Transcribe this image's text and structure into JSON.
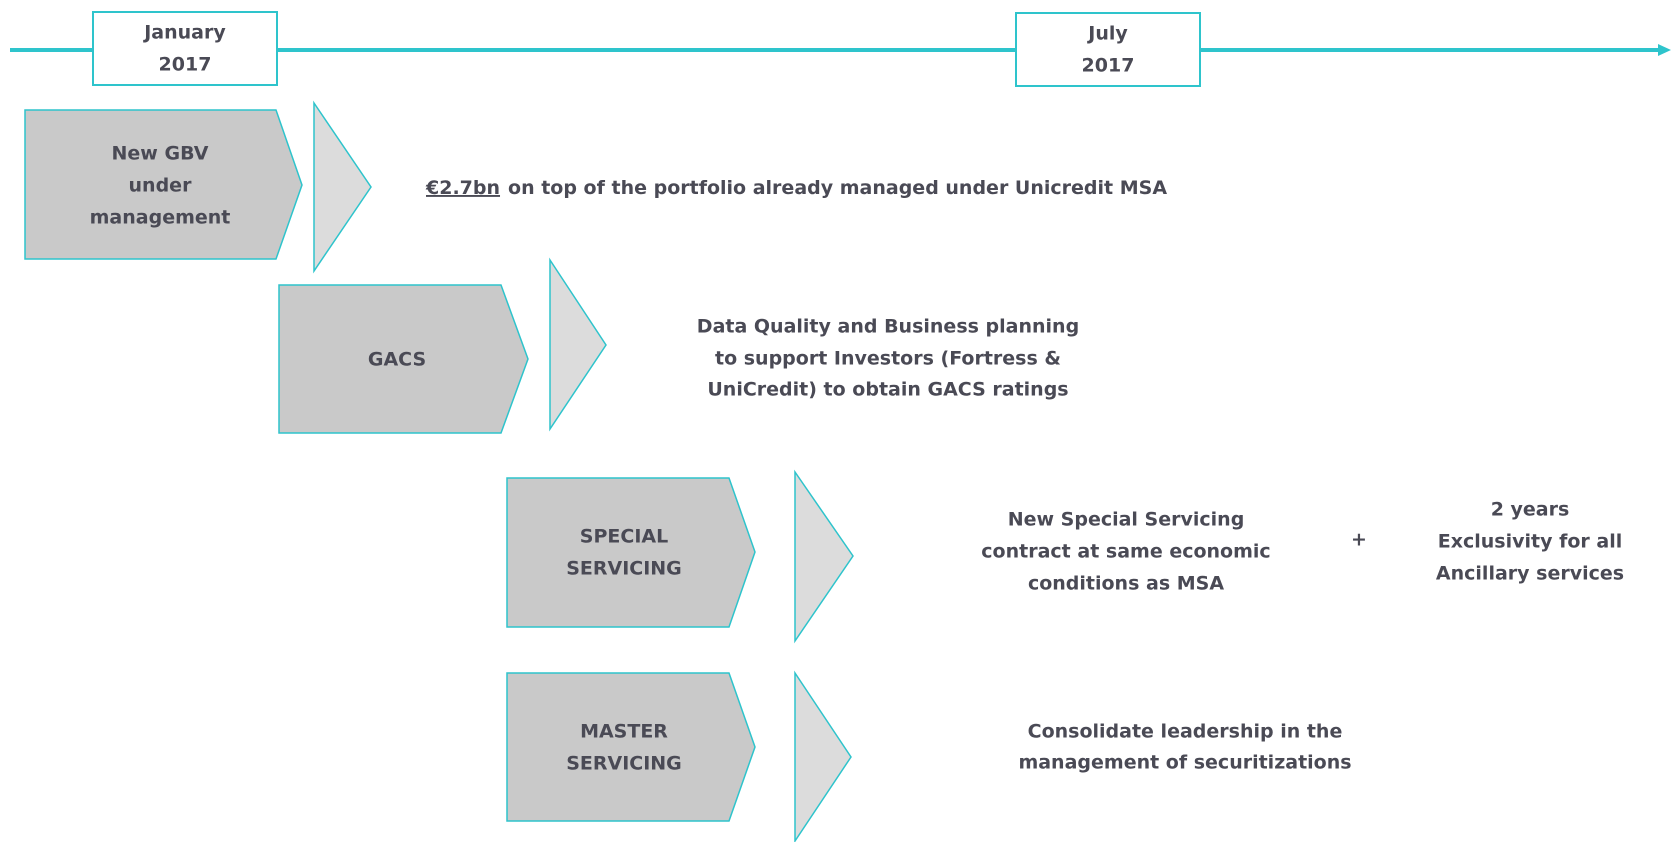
{
  "timeline": {
    "start": [
      "January",
      "2017"
    ],
    "end": [
      "July",
      "2017"
    ]
  },
  "rows": [
    {
      "label": [
        "New GBV",
        "under",
        "management"
      ],
      "highlight": "€2.7bn",
      "description": "on top of the portfolio already managed under Unicredit MSA"
    },
    {
      "label": [
        "GACS"
      ],
      "description": [
        "Data Quality and Business planning",
        "to support Investors (Fortress &",
        "UniCredit) to obtain GACS ratings"
      ]
    },
    {
      "label": [
        "SPECIAL",
        "SERVICING"
      ],
      "description": [
        "New Special Servicing",
        "contract at same economic",
        "conditions as MSA"
      ],
      "connector": "+",
      "extra": [
        "2 years",
        "Exclusivity for all",
        "Ancillary services"
      ]
    },
    {
      "label": [
        "MASTER",
        "SERVICING"
      ],
      "description": [
        "Consolidate leadership in the",
        "management of securitizations"
      ]
    }
  ]
}
